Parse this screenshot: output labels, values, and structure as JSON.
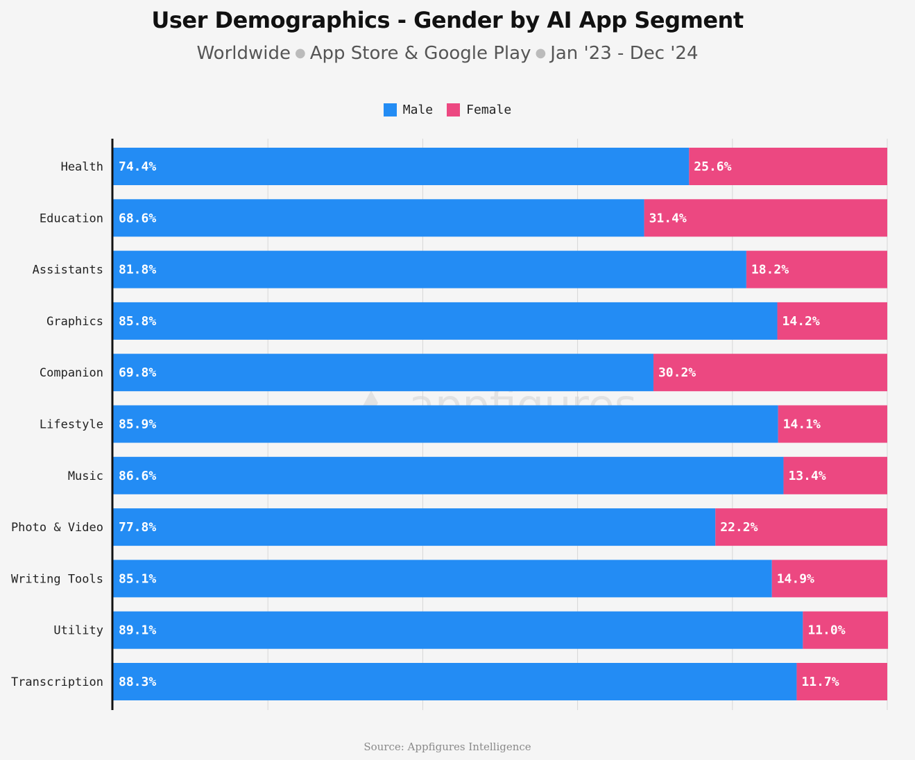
{
  "title": "User Demographics - Gender by AI App Segment",
  "subtitle_parts": [
    "Worldwide",
    "App Store & Google Play",
    "Jan '23 - Dec '24"
  ],
  "source": "Source: Appfigures Intelligence",
  "watermark": "appfigures",
  "colors": {
    "male": "#238cf4",
    "female": "#ec4881",
    "grid": "#d6d6d6",
    "axis": "#111111"
  },
  "chart_data": {
    "type": "bar",
    "orientation": "horizontal",
    "stacked": true,
    "categories": [
      "Health",
      "Education",
      "Assistants",
      "Graphics",
      "Companion",
      "Lifestyle",
      "Music",
      "Photo & Video",
      "Writing Tools",
      "Utility",
      "Transcription"
    ],
    "series": [
      {
        "name": "Male",
        "values": [
          74.4,
          68.6,
          81.8,
          85.8,
          69.8,
          85.9,
          86.6,
          77.8,
          85.1,
          89.1,
          88.3
        ]
      },
      {
        "name": "Female",
        "values": [
          25.6,
          31.4,
          18.2,
          14.2,
          30.2,
          14.1,
          13.4,
          22.2,
          14.9,
          11.0,
          11.7
        ]
      }
    ],
    "xlim": [
      0,
      100
    ],
    "grid": true,
    "legend": "top-center",
    "value_format": "percent_1dp"
  }
}
